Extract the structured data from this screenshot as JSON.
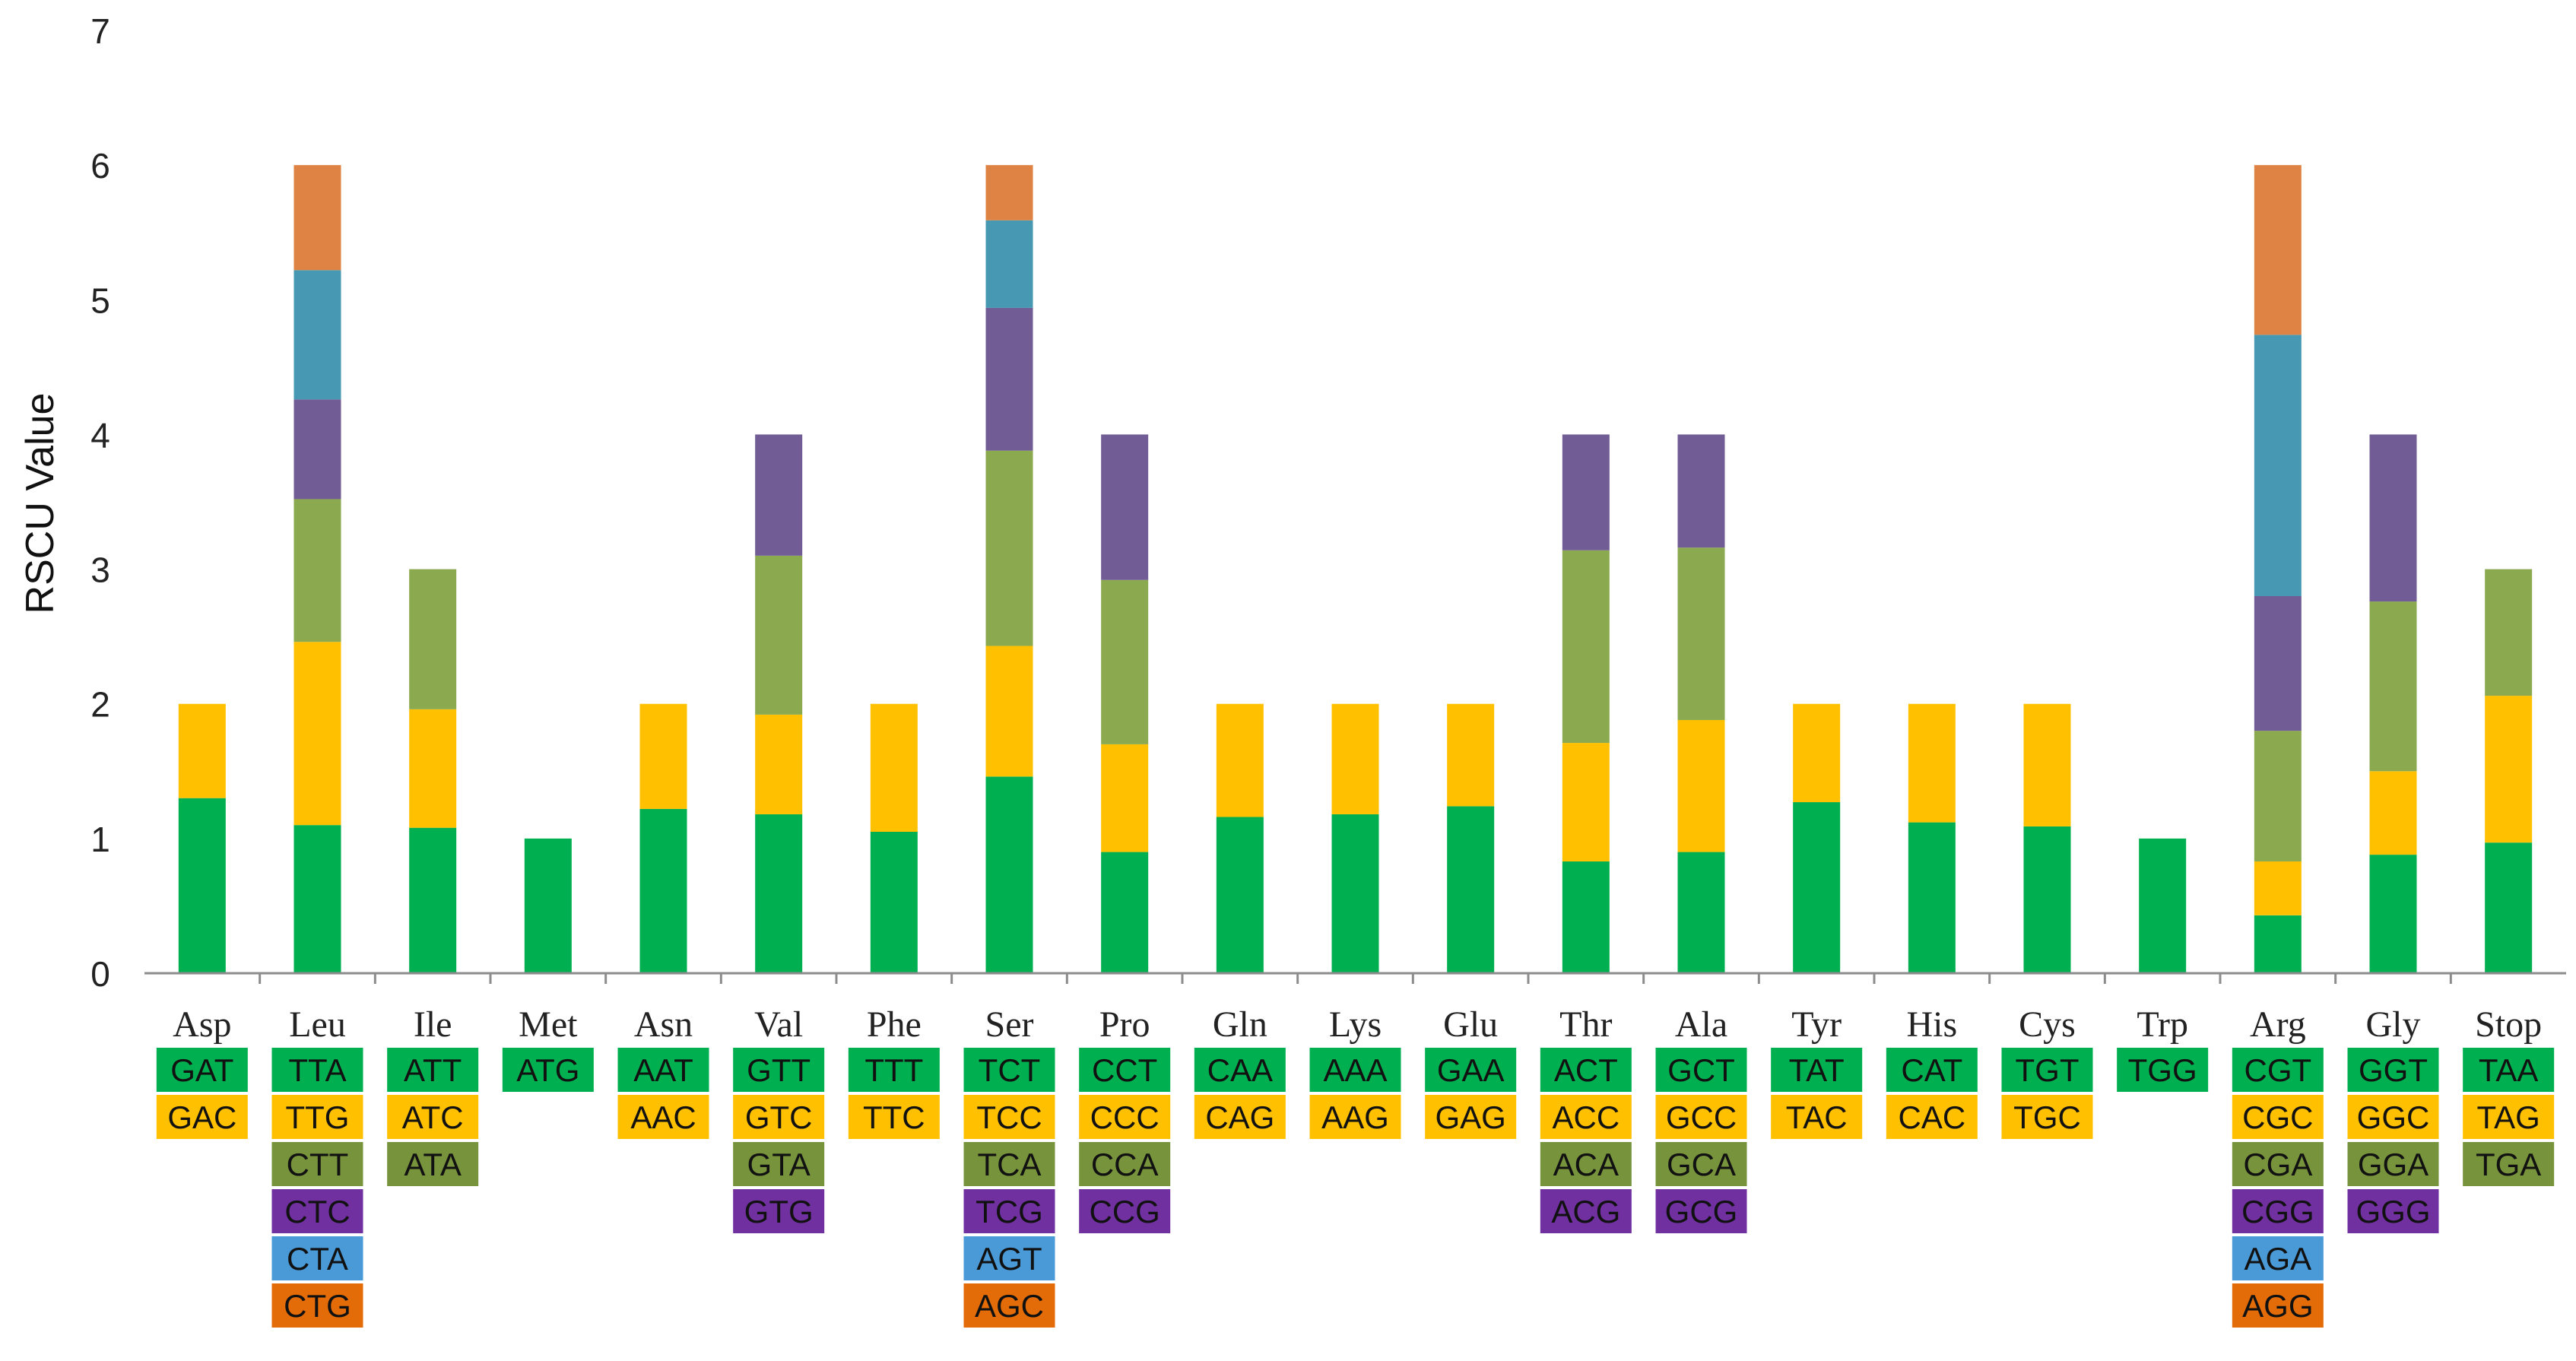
{
  "chart_data": {
    "type": "bar",
    "stacked": true,
    "title": "",
    "xlabel": "",
    "ylabel": "RSCU Value",
    "ylim": [
      0,
      7
    ],
    "yticks": [
      0,
      1,
      2,
      3,
      4,
      5,
      6,
      7
    ],
    "grid": false,
    "legend": "codon boxes below each amino acid",
    "colors": [
      "#00b050",
      "#ffc000",
      "#77933c",
      "#7030a0",
      "#4a9ad8",
      "#e36c09"
    ],
    "bar_colors": [
      "#00b050",
      "#ffc000",
      "#8ba94f",
      "#715c95",
      "#4799b3",
      "#de8343"
    ],
    "categories": [
      {
        "name": "Asp",
        "codons": [
          "GAT",
          "GAC"
        ],
        "values": [
          1.3,
          0.7
        ]
      },
      {
        "name": "Leu",
        "codons": [
          "TTA",
          "TTG",
          "CTT",
          "CTC",
          "CTA",
          "CTG"
        ],
        "values": [
          1.1,
          1.36,
          1.06,
          0.74,
          0.96,
          0.78
        ]
      },
      {
        "name": "Ile",
        "codons": [
          "ATT",
          "ATC",
          "ATA"
        ],
        "values": [
          1.08,
          0.88,
          1.04
        ]
      },
      {
        "name": "Met",
        "codons": [
          "ATG"
        ],
        "values": [
          1.0
        ]
      },
      {
        "name": "Asn",
        "codons": [
          "AAT",
          "AAC"
        ],
        "values": [
          1.22,
          0.78
        ]
      },
      {
        "name": "Val",
        "codons": [
          "GTT",
          "GTC",
          "GTA",
          "GTG"
        ],
        "values": [
          1.18,
          0.74,
          1.18,
          0.9
        ]
      },
      {
        "name": "Phe",
        "codons": [
          "TTT",
          "TTC"
        ],
        "values": [
          1.05,
          0.95
        ]
      },
      {
        "name": "Ser",
        "codons": [
          "TCT",
          "TCC",
          "TCA",
          "TCG",
          "AGT",
          "AGC"
        ],
        "values": [
          1.46,
          0.97,
          1.45,
          1.06,
          0.65,
          0.41
        ]
      },
      {
        "name": "Pro",
        "codons": [
          "CCT",
          "CCC",
          "CCA",
          "CCG"
        ],
        "values": [
          0.9,
          0.8,
          1.22,
          1.08
        ]
      },
      {
        "name": "Gln",
        "codons": [
          "CAA",
          "CAG"
        ],
        "values": [
          1.16,
          0.84
        ]
      },
      {
        "name": "Lys",
        "codons": [
          "AAA",
          "AAG"
        ],
        "values": [
          1.18,
          0.82
        ]
      },
      {
        "name": "Glu",
        "codons": [
          "GAA",
          "GAG"
        ],
        "values": [
          1.24,
          0.76
        ]
      },
      {
        "name": "Thr",
        "codons": [
          "ACT",
          "ACC",
          "ACA",
          "ACG"
        ],
        "values": [
          0.83,
          0.88,
          1.43,
          0.86
        ]
      },
      {
        "name": "Ala",
        "codons": [
          "GCT",
          "GCC",
          "GCA",
          "GCG"
        ],
        "values": [
          0.9,
          0.98,
          1.28,
          0.84
        ]
      },
      {
        "name": "Tyr",
        "codons": [
          "TAT",
          "TAC"
        ],
        "values": [
          1.27,
          0.73
        ]
      },
      {
        "name": "His",
        "codons": [
          "CAT",
          "CAC"
        ],
        "values": [
          1.12,
          0.88
        ]
      },
      {
        "name": "Cys",
        "codons": [
          "TGT",
          "TGC"
        ],
        "values": [
          1.09,
          0.91
        ]
      },
      {
        "name": "Trp",
        "codons": [
          "TGG"
        ],
        "values": [
          1.0
        ]
      },
      {
        "name": "Arg",
        "codons": [
          "CGT",
          "CGC",
          "CGA",
          "CGG",
          "AGA",
          "AGG"
        ],
        "values": [
          0.43,
          0.4,
          0.97,
          1.0,
          1.94,
          1.26
        ]
      },
      {
        "name": "Gly",
        "codons": [
          "GGT",
          "GGC",
          "GGA",
          "GGG"
        ],
        "values": [
          0.88,
          0.62,
          1.26,
          1.24
        ]
      },
      {
        "name": "Stop",
        "codons": [
          "TAA",
          "TAG",
          "TGA"
        ],
        "values": [
          0.97,
          1.09,
          0.94
        ]
      }
    ]
  }
}
